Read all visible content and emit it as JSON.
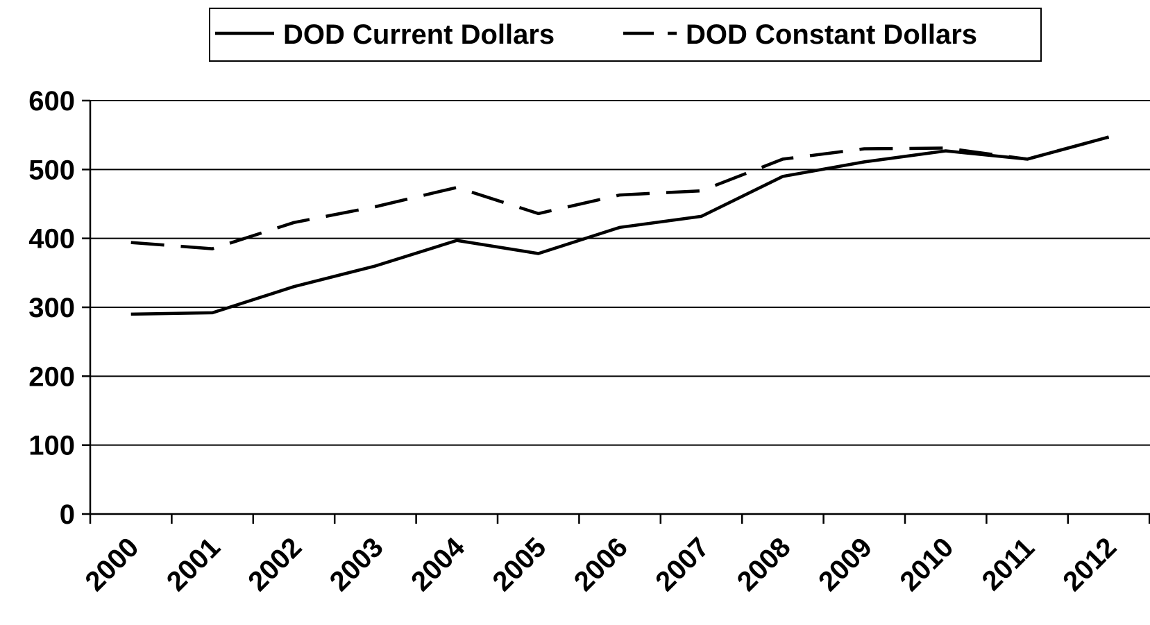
{
  "chart_data": {
    "type": "line",
    "title": "",
    "xlabel": "",
    "ylabel": "",
    "categories": [
      "2000",
      "2001",
      "2002",
      "2003",
      "2004",
      "2005",
      "2006",
      "2007",
      "2008",
      "2009",
      "2010",
      "2011",
      "2012"
    ],
    "series": [
      {
        "name": "DOD Current Dollars",
        "style": "solid",
        "color": "#000000",
        "values": [
          290,
          292,
          330,
          360,
          397,
          378,
          416,
          432,
          490,
          511,
          527,
          515,
          547
        ]
      },
      {
        "name": "DOD Constant Dollars",
        "style": "dashed",
        "color": "#000000",
        "values": [
          394,
          385,
          423,
          446,
          474,
          436,
          463,
          469,
          515,
          530,
          531,
          515,
          547
        ]
      }
    ],
    "ylim": [
      0,
      600
    ],
    "yticks": [
      "0",
      "100",
      "200",
      "300",
      "400",
      "500",
      "600"
    ],
    "grid": true,
    "legend_position": "top-center"
  }
}
